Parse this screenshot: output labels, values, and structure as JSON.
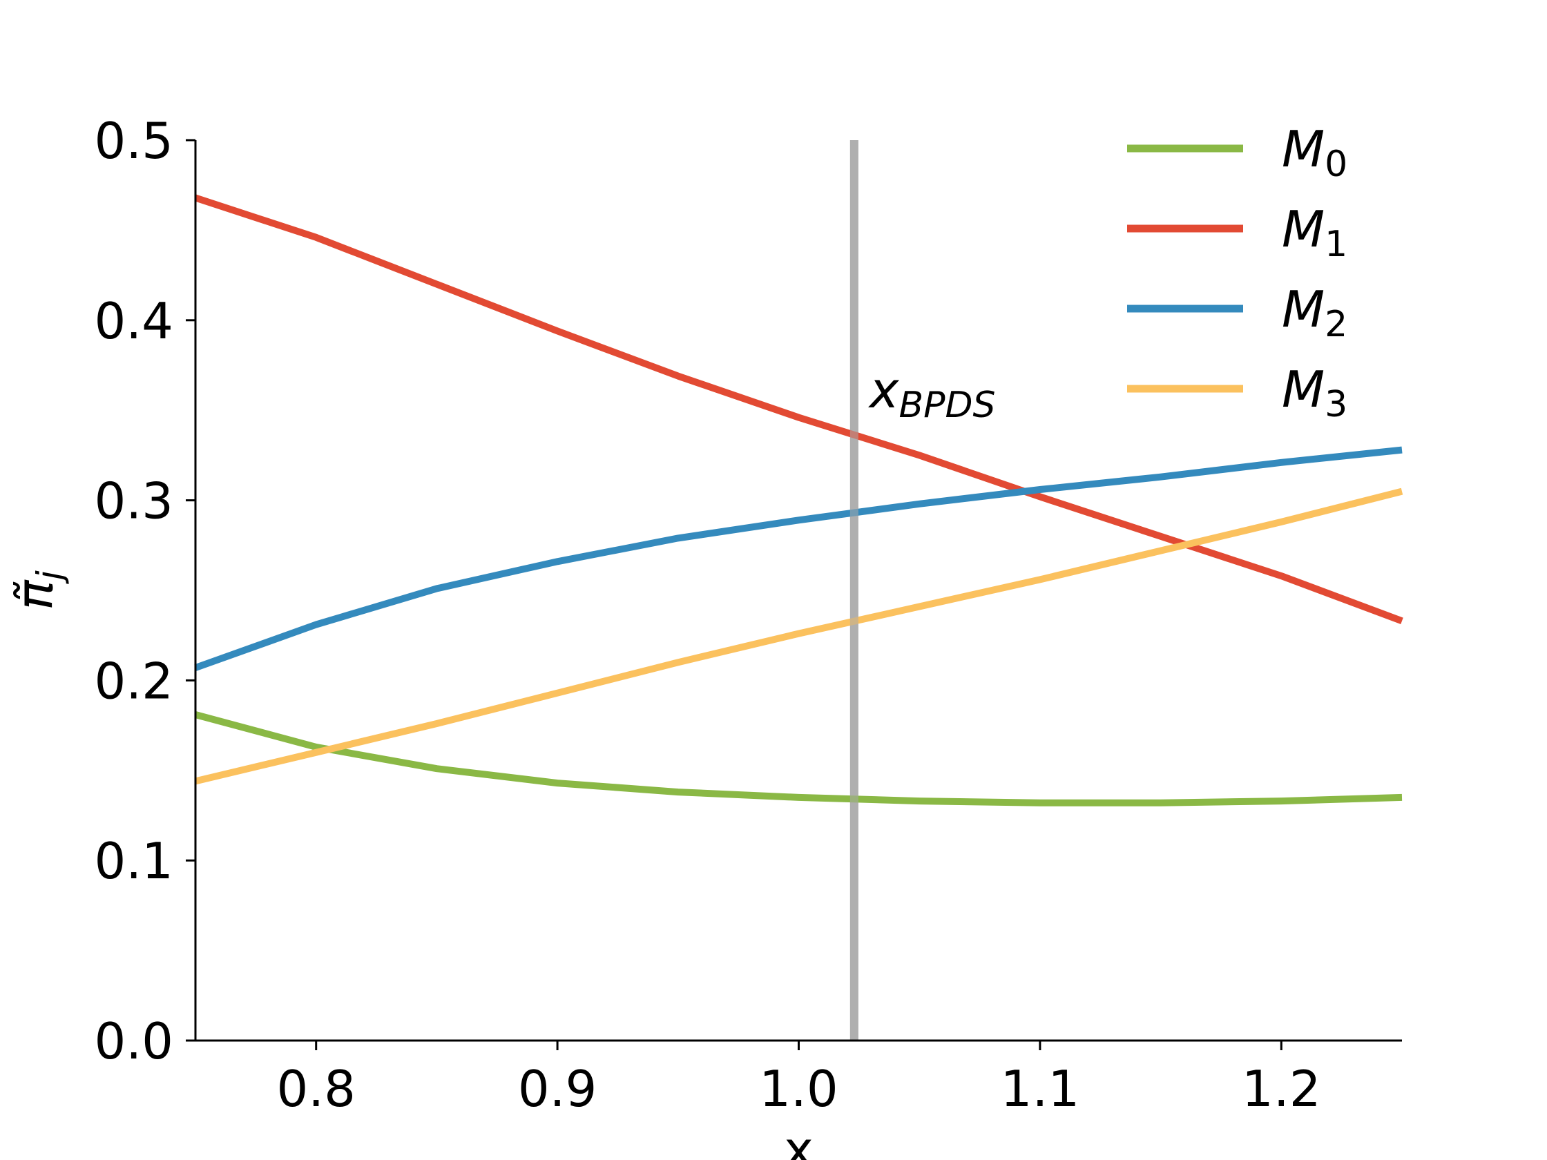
{
  "chart_data": {
    "type": "line",
    "title": "",
    "xlabel": "x",
    "ylabel": "π̃",
    "ylabel_sub": "j",
    "xlim": [
      0.75,
      1.25
    ],
    "ylim": [
      0.0,
      0.5
    ],
    "xticks": [
      0.8,
      0.9,
      1.0,
      1.1,
      1.2
    ],
    "xtick_labels": [
      "0.8",
      "0.9",
      "1.0",
      "1.1",
      "1.2"
    ],
    "yticks": [
      0.0,
      0.1,
      0.2,
      0.3,
      0.4,
      0.5
    ],
    "ytick_labels": [
      "0.0",
      "0.1",
      "0.2",
      "0.3",
      "0.4",
      "0.5"
    ],
    "grid": false,
    "legend_position": "top-right",
    "x": [
      0.75,
      0.8,
      0.85,
      0.9,
      0.95,
      1.0,
      1.05,
      1.1,
      1.15,
      1.2,
      1.25
    ],
    "series": [
      {
        "name": "M",
        "subscript": "0",
        "color": "#8ab845",
        "values": [
          0.181,
          0.163,
          0.151,
          0.143,
          0.138,
          0.135,
          0.133,
          0.132,
          0.132,
          0.133,
          0.135
        ]
      },
      {
        "name": "M",
        "subscript": "1",
        "color": "#e24a33",
        "values": [
          0.468,
          0.446,
          0.42,
          0.394,
          0.369,
          0.346,
          0.325,
          0.302,
          0.28,
          0.258,
          0.233
        ]
      },
      {
        "name": "M",
        "subscript": "2",
        "color": "#348abd",
        "values": [
          0.207,
          0.231,
          0.251,
          0.266,
          0.279,
          0.289,
          0.298,
          0.306,
          0.313,
          0.321,
          0.328
        ]
      },
      {
        "name": "M",
        "subscript": "3",
        "color": "#fbc15e",
        "values": [
          0.144,
          0.16,
          0.176,
          0.193,
          0.21,
          0.226,
          0.241,
          0.256,
          0.272,
          0.288,
          0.305
        ]
      }
    ],
    "vline": {
      "x": 1.023,
      "label": "x",
      "label_sub": "BPDS",
      "color": "#a9a9a9"
    }
  }
}
